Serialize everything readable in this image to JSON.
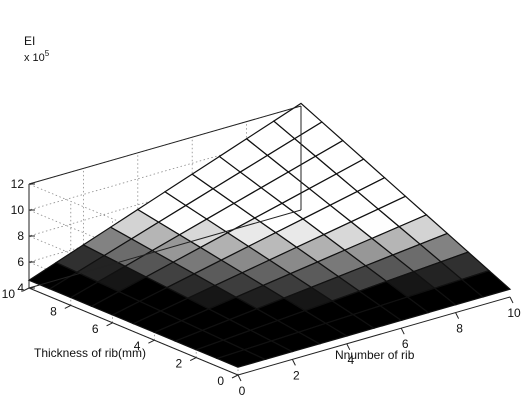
{
  "chart_data": {
    "type": "surface",
    "title": "",
    "zlabel": "EI",
    "zscale_label_base": "x 10",
    "zscale_label_exp": "5",
    "xlabel": "Nnumber of rib",
    "ylabel": "Thickness of rib(mm)",
    "xlim": [
      0,
      10
    ],
    "ylim": [
      0,
      10
    ],
    "zlim": [
      4,
      12
    ],
    "x_ticks": [
      "0",
      "2",
      "4",
      "6",
      "8",
      "10"
    ],
    "y_ticks": [
      "0",
      "2",
      "4",
      "6",
      "8",
      "10"
    ],
    "z_ticks": [
      "4",
      "6",
      "8",
      "10",
      "12"
    ],
    "grid": true,
    "colormap": "gray",
    "x": [
      0,
      1,
      2,
      3,
      4,
      5,
      6,
      7,
      8,
      9,
      10
    ],
    "y": [
      0,
      1,
      2,
      3,
      4,
      5,
      6,
      7,
      8,
      9,
      10
    ],
    "z_formula": "EI(x10^5) = 4.6 + 0.076*x*y",
    "z_corners": {
      "x0_y0": 4.6,
      "x10_y0": 4.6,
      "x0_y10": 4.6,
      "x10_y10": 12.2
    }
  }
}
